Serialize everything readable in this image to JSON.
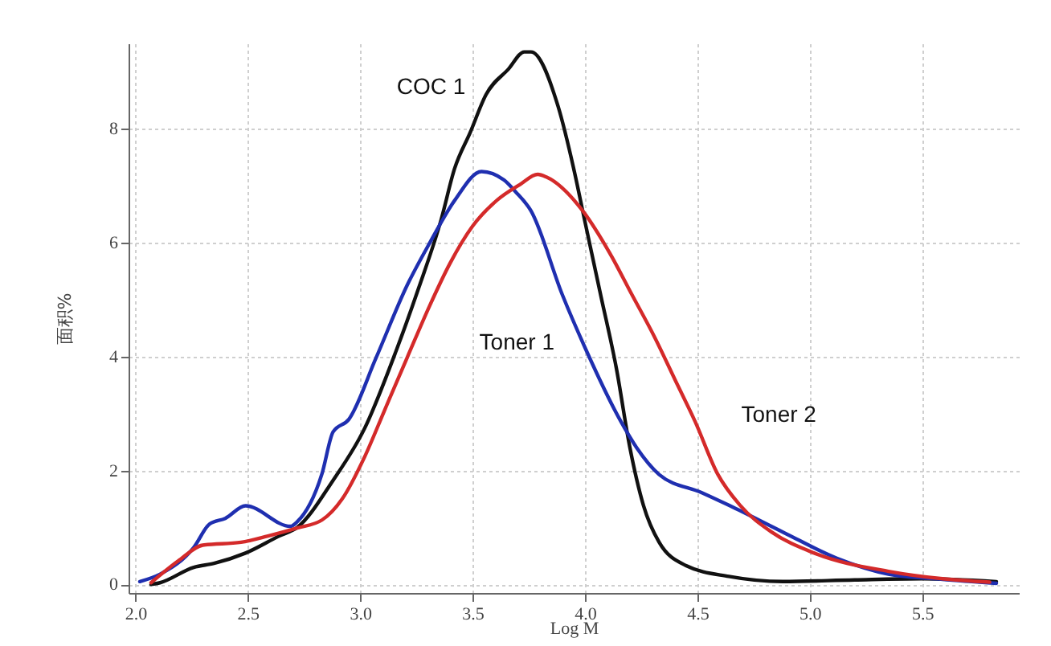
{
  "chart_data": {
    "type": "line",
    "xlabel": "Log M",
    "ylabel": "面积%",
    "xlim": [
      1.97,
      5.93
    ],
    "ylim": [
      -0.15,
      9.5
    ],
    "xticks": [
      {
        "value": 2,
        "label": "2.0"
      },
      {
        "value": 2.5,
        "label": "2.5"
      },
      {
        "value": 3,
        "label": "3.0"
      },
      {
        "value": 3.5,
        "label": "3.5"
      },
      {
        "value": 4,
        "label": "4.0"
      },
      {
        "value": 4.5,
        "label": "4.5"
      },
      {
        "value": 5,
        "label": "5.0"
      },
      {
        "value": 5.5,
        "label": "5.5"
      }
    ],
    "yticks": [
      0,
      2,
      4,
      6,
      8
    ],
    "grid": true,
    "legend": false,
    "series": [
      {
        "name": "COC 1",
        "color": "#111111",
        "x": [
          2.07,
          2.11,
          2.26,
          2.35,
          2.49,
          2.64,
          2.72,
          2.88,
          3.02,
          3.16,
          3.26,
          3.36,
          3.42,
          3.49,
          3.56,
          3.66,
          3.73,
          3.76,
          3.88,
          3.95,
          4.0,
          4.07,
          4.14,
          4.2,
          4.26,
          4.33,
          4.45,
          4.64,
          4.88,
          5.2,
          5.5,
          5.83
        ],
        "values": [
          0,
          0.03,
          0.3,
          0.37,
          0.55,
          0.85,
          1.0,
          1.83,
          2.74,
          4.1,
          5.2,
          6.4,
          7.3,
          7.94,
          8.6,
          9.05,
          9.35,
          9.35,
          8.4,
          7.3,
          6.37,
          5.08,
          3.79,
          2.4,
          1.39,
          0.74,
          0.33,
          0.14,
          0.05,
          0.08,
          0.1,
          0.05
        ]
      },
      {
        "name": "Toner 1",
        "color": "#1f2fb0",
        "x": [
          2.02,
          2.11,
          2.26,
          2.33,
          2.4,
          2.49,
          2.69,
          2.72,
          2.83,
          2.88,
          2.95,
          3.07,
          3.21,
          3.31,
          3.42,
          3.54,
          3.64,
          3.69,
          3.76,
          3.9,
          4.0,
          4.16,
          4.23,
          4.33,
          4.52,
          4.64,
          4.88,
          5.12,
          5.35,
          5.59,
          5.83
        ],
        "values": [
          0.05,
          0.18,
          0.65,
          1.06,
          1.16,
          1.38,
          1.02,
          1.1,
          1.94,
          2.68,
          2.9,
          3.97,
          5.26,
          6.0,
          6.74,
          7.25,
          7.1,
          6.9,
          6.56,
          5.08,
          4.16,
          2.86,
          2.4,
          1.93,
          1.61,
          1.39,
          0.92,
          0.46,
          0.18,
          0.09,
          0.02
        ]
      },
      {
        "name": "Toner 2",
        "color": "#d42a2a",
        "x": [
          2.07,
          2.19,
          2.3,
          2.47,
          2.59,
          2.72,
          2.83,
          2.92,
          3.02,
          3.11,
          3.21,
          3.31,
          3.4,
          3.5,
          3.61,
          3.71,
          3.79,
          3.83,
          3.99,
          4.11,
          4.21,
          4.31,
          4.4,
          4.49,
          4.59,
          4.69,
          4.83,
          5.02,
          5.35,
          5.59,
          5.8
        ],
        "values": [
          0.03,
          0.41,
          0.69,
          0.74,
          0.85,
          0.99,
          1.13,
          1.5,
          2.24,
          3.07,
          3.99,
          4.9,
          5.64,
          6.29,
          6.75,
          7.02,
          7.2,
          7.15,
          6.56,
          5.82,
          5.08,
          4.34,
          3.6,
          2.86,
          1.94,
          1.39,
          0.92,
          0.55,
          0.23,
          0.1,
          0.04
        ]
      }
    ]
  }
}
